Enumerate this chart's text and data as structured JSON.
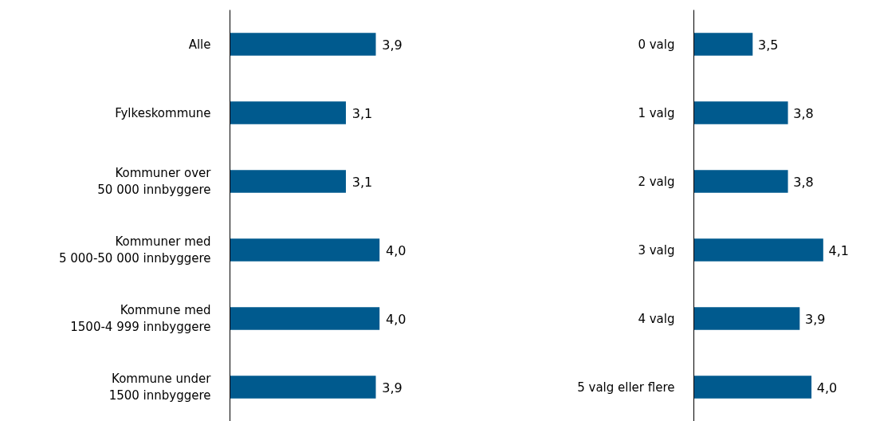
{
  "chart_data": [
    {
      "type": "bar",
      "orientation": "horizontal",
      "categories": [
        "Alle",
        "Fylkeskommune",
        "Kommuner over\n50 000 innbyggere",
        "Kommuner med\n5 000-50 000 innbyggere",
        "Kommune med\n1500-4 999 innbyggere",
        "Kommune under\n1500 innbyggere"
      ],
      "values": [
        3.9,
        3.1,
        3.1,
        4.0,
        4.0,
        3.9
      ],
      "value_labels": [
        "3,9",
        "3,1",
        "3,1",
        "4,0",
        "4,0",
        "3,9"
      ],
      "color": "#005a8e",
      "tick_labels": "y",
      "grid": false
    },
    {
      "type": "bar",
      "orientation": "horizontal",
      "categories": [
        "0 valg",
        "1 valg",
        "2 valg",
        "3 valg",
        "4 valg",
        "5 valg eller flere"
      ],
      "values": [
        3.5,
        3.8,
        3.8,
        4.1,
        3.9,
        4.0
      ],
      "value_labels": [
        "3,5",
        "3,8",
        "3,8",
        "4,1",
        "3,9",
        "4,0"
      ],
      "color": "#005a8e",
      "xlim": [
        3,
        4.1
      ],
      "tick_labels": "y",
      "grid": false
    }
  ]
}
